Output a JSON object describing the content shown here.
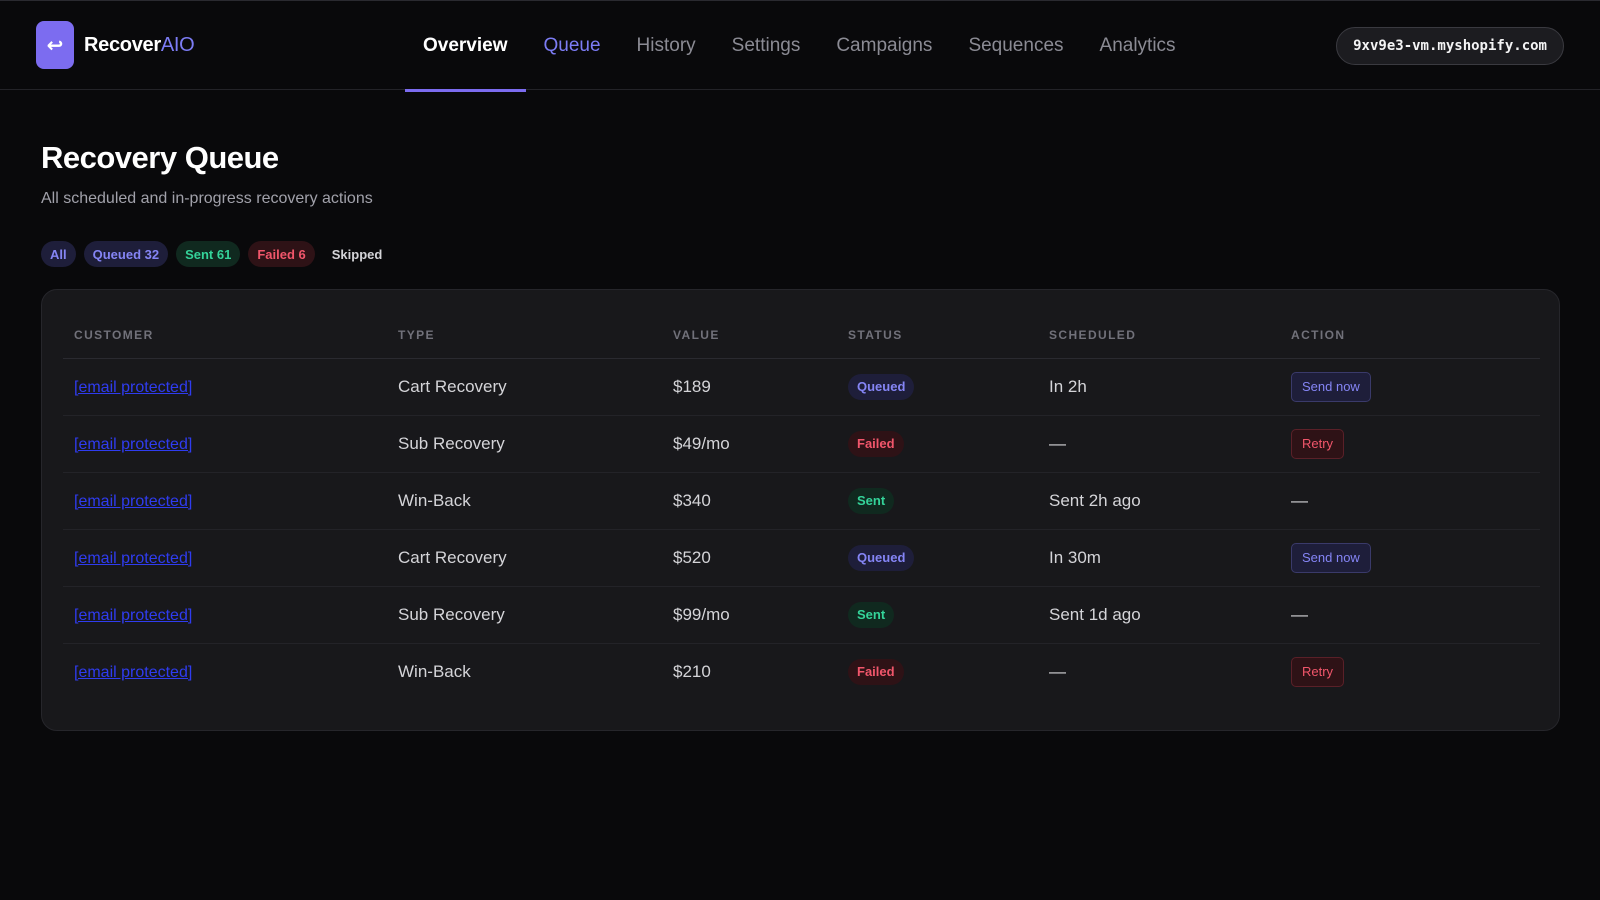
{
  "brand": {
    "logo_glyph": "↩",
    "name": "Recover",
    "name_accent": "AIO"
  },
  "nav": [
    {
      "label": "Overview",
      "state": "active"
    },
    {
      "label": "Queue",
      "state": "current"
    },
    {
      "label": "History",
      "state": ""
    },
    {
      "label": "Settings",
      "state": ""
    },
    {
      "label": "Campaigns",
      "state": ""
    },
    {
      "label": "Sequences",
      "state": ""
    },
    {
      "label": "Analytics",
      "state": ""
    }
  ],
  "shop": {
    "domain": "9xv9e3-vm.myshopify.com"
  },
  "header": {
    "title": "Recovery Queue",
    "subtitle": "All scheduled and in-progress recovery actions"
  },
  "filters": [
    {
      "label": "All",
      "kind": "all"
    },
    {
      "label": "Queued 32",
      "kind": "queued"
    },
    {
      "label": "Sent 61",
      "kind": "sent"
    },
    {
      "label": "Failed 6",
      "kind": "failed"
    },
    {
      "label": "Skipped",
      "kind": "skipped"
    }
  ],
  "table": {
    "columns": [
      "CUSTOMER",
      "TYPE",
      "VALUE",
      "STATUS",
      "SCHEDULED",
      "ACTION"
    ],
    "rows": [
      {
        "customer": "[email protected]",
        "type": "Cart Recovery",
        "value": "$189",
        "status": "Queued",
        "scheduled": "In 2h",
        "action": "Send now"
      },
      {
        "customer": "[email protected]",
        "type": "Sub Recovery",
        "value": "$49/mo",
        "status": "Failed",
        "scheduled": "—",
        "action": "Retry"
      },
      {
        "customer": "[email protected]",
        "type": "Win-Back",
        "value": "$340",
        "status": "Sent",
        "scheduled": "Sent 2h ago",
        "action": "—"
      },
      {
        "customer": "[email protected]",
        "type": "Cart Recovery",
        "value": "$520",
        "status": "Queued",
        "scheduled": "In 30m",
        "action": "Send now"
      },
      {
        "customer": "[email protected]",
        "type": "Sub Recovery",
        "value": "$99/mo",
        "status": "Sent",
        "scheduled": "Sent 1d ago",
        "action": "—"
      },
      {
        "customer": "[email protected]",
        "type": "Win-Back",
        "value": "$210",
        "status": "Failed",
        "scheduled": "—",
        "action": "Retry"
      }
    ]
  },
  "colors": {
    "accent": "#7c6cf0",
    "queued": "#8585f5",
    "sent": "#34d399",
    "failed": "#f1566b",
    "background": "#09090b",
    "card": "#18181b"
  }
}
